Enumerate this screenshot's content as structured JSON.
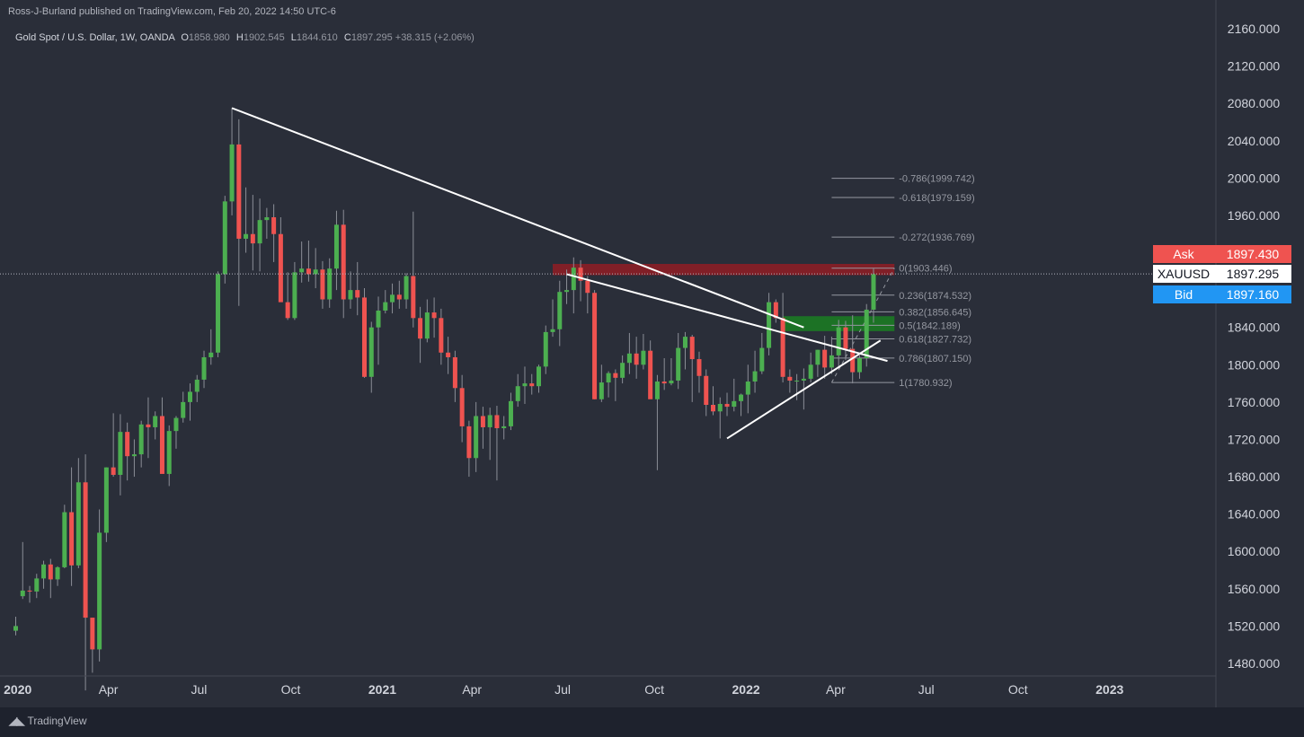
{
  "header": {
    "publisher": "Ross-J-Burland published on TradingView.com, Feb 20, 2022 14:50 UTC-6",
    "symbol": "Gold Spot / U.S. Dollar, 1W, OANDA",
    "open_label": "O",
    "open": "1858.980",
    "high_label": "H",
    "high": "1902.545",
    "low_label": "L",
    "low": "1844.610",
    "close_label": "C",
    "close": "1897.295",
    "change": "+38.315 (+2.06%)"
  },
  "price_badges": {
    "ask_label": "Ask",
    "ask": "1897.430",
    "last_label": "XAUUSD",
    "last": "1897.295",
    "bid_label": "Bid",
    "bid": "1897.160"
  },
  "footer": {
    "logo_text": "TradingView",
    "logo_icon": "tradingview-logo-icon"
  },
  "colors": {
    "background": "#2a2e39",
    "up": "#26a69a",
    "up_body": "#4caf50",
    "down": "#ef5350",
    "ask": "#ef5350",
    "bid": "#2196f3",
    "resistance_zone": "#8b1e26",
    "support_zone": "#1b7a24",
    "trendline": "#ffffff",
    "fib": "#9598a1"
  },
  "chart_data": {
    "type": "candlestick",
    "title": "Gold Spot / U.S. Dollar, 1W, OANDA",
    "xlabel": "",
    "ylabel": "",
    "ylim": [
      1460,
      2180
    ],
    "y_ticks": [
      "2160.000",
      "2120.000",
      "2080.000",
      "2040.000",
      "2000.000",
      "1960.000",
      "1920.000",
      "1880.000",
      "1840.000",
      "1800.000",
      "1760.000",
      "1720.000",
      "1680.000",
      "1640.000",
      "1600.000",
      "1560.000",
      "1520.000",
      "1480.000"
    ],
    "x_ticks": [
      {
        "label": "2020",
        "date": "2020-01-01",
        "bold": true
      },
      {
        "label": "Apr",
        "date": "2020-04-01"
      },
      {
        "label": "Jul",
        "date": "2020-07-01"
      },
      {
        "label": "Oct",
        "date": "2020-10-01"
      },
      {
        "label": "2021",
        "date": "2021-01-01",
        "bold": true
      },
      {
        "label": "Apr",
        "date": "2021-04-01"
      },
      {
        "label": "Jul",
        "date": "2021-07-01"
      },
      {
        "label": "Oct",
        "date": "2021-10-01"
      },
      {
        "label": "2022",
        "date": "2022-01-01",
        "bold": true
      },
      {
        "label": "Apr",
        "date": "2022-04-01"
      },
      {
        "label": "Jul",
        "date": "2022-07-01"
      },
      {
        "label": "Oct",
        "date": "2022-10-01"
      },
      {
        "label": "2023",
        "date": "2023-01-01",
        "bold": true
      }
    ],
    "ohlc_weekly_2019_12_30_to_2022_02_14": [
      [
        1515,
        1530,
        1510,
        1520
      ],
      [
        1552,
        1610,
        1549,
        1558
      ],
      [
        1558,
        1563,
        1545,
        1557
      ],
      [
        1557,
        1576,
        1550,
        1571
      ],
      [
        1571,
        1590,
        1560,
        1586
      ],
      [
        1586,
        1592,
        1550,
        1570
      ],
      [
        1570,
        1584,
        1563,
        1583
      ],
      [
        1583,
        1650,
        1582,
        1642
      ],
      [
        1642,
        1690,
        1563,
        1585
      ],
      [
        1585,
        1700,
        1582,
        1674
      ],
      [
        1674,
        1704,
        1451,
        1529
      ],
      [
        1529,
        1515,
        1470,
        1495
      ],
      [
        1495,
        1645,
        1482,
        1620
      ],
      [
        1620,
        1690,
        1610,
        1690
      ],
      [
        1690,
        1748,
        1680,
        1682
      ],
      [
        1682,
        1747,
        1660,
        1728
      ],
      [
        1728,
        1738,
        1676,
        1702
      ],
      [
        1702,
        1720,
        1680,
        1704
      ],
      [
        1704,
        1740,
        1690,
        1736
      ],
      [
        1736,
        1765,
        1700,
        1733
      ],
      [
        1733,
        1750,
        1720,
        1745
      ],
      [
        1745,
        1765,
        1690,
        1683
      ],
      [
        1683,
        1735,
        1670,
        1729
      ],
      [
        1729,
        1745,
        1710,
        1743
      ],
      [
        1743,
        1771,
        1738,
        1760
      ],
      [
        1760,
        1780,
        1740,
        1771
      ],
      [
        1771,
        1789,
        1760,
        1784
      ],
      [
        1784,
        1815,
        1775,
        1808
      ],
      [
        1808,
        1838,
        1800,
        1813
      ],
      [
        1813,
        1900,
        1808,
        1897
      ],
      [
        1897,
        1981,
        1887,
        1975
      ],
      [
        1975,
        2075,
        1960,
        2036
      ],
      [
        2036,
        2063,
        1863,
        1935
      ],
      [
        1935,
        1990,
        1920,
        1940
      ],
      [
        1940,
        1982,
        1901,
        1930
      ],
      [
        1930,
        1978,
        1900,
        1955
      ],
      [
        1955,
        1968,
        1935,
        1958
      ],
      [
        1958,
        1972,
        1910,
        1940
      ],
      [
        1940,
        1958,
        1882,
        1867
      ],
      [
        1867,
        1899,
        1848,
        1850
      ],
      [
        1850,
        1910,
        1848,
        1899
      ],
      [
        1899,
        1932,
        1888,
        1903
      ],
      [
        1903,
        1933,
        1889,
        1897
      ],
      [
        1897,
        1925,
        1882,
        1902
      ],
      [
        1902,
        1911,
        1860,
        1870
      ],
      [
        1870,
        1914,
        1861,
        1903
      ],
      [
        1903,
        1965,
        1880,
        1950
      ],
      [
        1950,
        1966,
        1850,
        1870
      ],
      [
        1870,
        1900,
        1860,
        1880
      ],
      [
        1880,
        1910,
        1853,
        1872
      ],
      [
        1872,
        1882,
        1786,
        1787
      ],
      [
        1787,
        1846,
        1770,
        1840
      ],
      [
        1840,
        1873,
        1800,
        1858
      ],
      [
        1858,
        1880,
        1855,
        1867
      ],
      [
        1867,
        1887,
        1855,
        1875
      ],
      [
        1875,
        1890,
        1860,
        1870
      ],
      [
        1870,
        1898,
        1860,
        1895
      ],
      [
        1895,
        1964,
        1840,
        1850
      ],
      [
        1850,
        1862,
        1802,
        1828
      ],
      [
        1828,
        1870,
        1824,
        1856
      ],
      [
        1856,
        1872,
        1829,
        1850
      ],
      [
        1850,
        1860,
        1800,
        1813
      ],
      [
        1813,
        1830,
        1790,
        1808
      ],
      [
        1808,
        1815,
        1760,
        1775
      ],
      [
        1775,
        1789,
        1717,
        1734
      ],
      [
        1734,
        1740,
        1680,
        1700
      ],
      [
        1700,
        1760,
        1685,
        1745
      ],
      [
        1745,
        1755,
        1710,
        1733
      ],
      [
        1733,
        1754,
        1698,
        1746
      ],
      [
        1746,
        1756,
        1676,
        1732
      ],
      [
        1732,
        1745,
        1720,
        1734
      ],
      [
        1734,
        1770,
        1730,
        1761
      ],
      [
        1761,
        1790,
        1755,
        1777
      ],
      [
        1777,
        1798,
        1758,
        1780
      ],
      [
        1780,
        1790,
        1768,
        1777
      ],
      [
        1777,
        1800,
        1770,
        1798
      ],
      [
        1798,
        1842,
        1790,
        1835
      ],
      [
        1835,
        1870,
        1830,
        1838
      ],
      [
        1838,
        1890,
        1820,
        1878
      ],
      [
        1878,
        1902,
        1865,
        1880
      ],
      [
        1880,
        1915,
        1855,
        1904
      ],
      [
        1904,
        1912,
        1868,
        1890
      ],
      [
        1890,
        1895,
        1855,
        1877
      ],
      [
        1877,
        1880,
        1763,
        1763
      ],
      [
        1763,
        1800,
        1760,
        1781
      ],
      [
        1781,
        1793,
        1765,
        1791
      ],
      [
        1791,
        1795,
        1761,
        1786
      ],
      [
        1786,
        1810,
        1780,
        1802
      ],
      [
        1802,
        1834,
        1790,
        1812
      ],
      [
        1812,
        1830,
        1785,
        1800
      ],
      [
        1800,
        1833,
        1795,
        1815
      ],
      [
        1815,
        1826,
        1790,
        1763
      ],
      [
        1763,
        1789,
        1687,
        1782
      ],
      [
        1782,
        1807,
        1773,
        1780
      ],
      [
        1780,
        1807,
        1778,
        1783
      ],
      [
        1783,
        1834,
        1774,
        1818
      ],
      [
        1818,
        1835,
        1795,
        1830
      ],
      [
        1830,
        1832,
        1760,
        1806
      ],
      [
        1806,
        1814,
        1770,
        1788
      ],
      [
        1788,
        1795,
        1745,
        1757
      ],
      [
        1757,
        1777,
        1746,
        1750
      ],
      [
        1750,
        1765,
        1721,
        1758
      ],
      [
        1758,
        1770,
        1745,
        1755
      ],
      [
        1755,
        1785,
        1750,
        1761
      ],
      [
        1761,
        1769,
        1745,
        1768
      ],
      [
        1768,
        1800,
        1748,
        1782
      ],
      [
        1782,
        1815,
        1770,
        1793
      ],
      [
        1793,
        1834,
        1790,
        1818
      ],
      [
        1818,
        1877,
        1810,
        1867
      ],
      [
        1867,
        1870,
        1845,
        1850
      ],
      [
        1850,
        1877,
        1781,
        1787
      ],
      [
        1787,
        1795,
        1770,
        1783
      ],
      [
        1783,
        1790,
        1762,
        1783
      ],
      [
        1783,
        1796,
        1752,
        1785
      ],
      [
        1785,
        1813,
        1781,
        1800
      ],
      [
        1800,
        1816,
        1787,
        1816
      ],
      [
        1816,
        1831,
        1785,
        1797
      ],
      [
        1797,
        1830,
        1790,
        1810
      ],
      [
        1810,
        1848,
        1796,
        1840
      ],
      [
        1840,
        1847,
        1805,
        1817
      ],
      [
        1817,
        1853,
        1780,
        1792
      ],
      [
        1792,
        1810,
        1785,
        1807
      ],
      [
        1807,
        1865,
        1798,
        1859
      ],
      [
        1859,
        1903,
        1845,
        1897
      ]
    ],
    "trendlines": [
      {
        "from": {
          "week": 31,
          "price": 2075
        },
        "to": {
          "week": 113,
          "price": 1840
        }
      },
      {
        "from": {
          "week": 79,
          "price": 1897
        },
        "to": {
          "week": 125,
          "price": 1804
        }
      },
      {
        "from": {
          "week": 102,
          "price": 1721
        },
        "to": {
          "week": 124,
          "price": 1826
        }
      }
    ],
    "zones": [
      {
        "name": "resistance",
        "from_week": 77,
        "to_week": 126,
        "top": 1908,
        "bottom": 1896
      },
      {
        "name": "support",
        "from_week": 110,
        "to_week": 126,
        "top": 1852,
        "bottom": 1836
      }
    ],
    "fibonacci": [
      {
        "ratio": "-0.786",
        "price": 1999.742,
        "label": "-0.786(1999.742)"
      },
      {
        "ratio": "-0.618",
        "price": 1979.159,
        "label": "-0.618(1979.159)"
      },
      {
        "ratio": "-0.272",
        "price": 1936.769,
        "label": "-0.272(1936.769)"
      },
      {
        "ratio": "0",
        "price": 1903.446,
        "label": "0(1903.446)"
      },
      {
        "ratio": "0.236",
        "price": 1874.532,
        "label": "0.236(1874.532)"
      },
      {
        "ratio": "0.382",
        "price": 1856.645,
        "label": "0.382(1856.645)"
      },
      {
        "ratio": "0.5",
        "price": 1842.189,
        "label": "0.5(1842.189)"
      },
      {
        "ratio": "0.618",
        "price": 1827.732,
        "label": "0.618(1827.732)"
      },
      {
        "ratio": "0.786",
        "price": 1807.15,
        "label": "0.786(1807.150)"
      },
      {
        "ratio": "1",
        "price": 1780.932,
        "label": "1(1780.932)"
      }
    ],
    "fib_range": {
      "from_week": 117,
      "to_week": 126
    },
    "last_price": 1897.295,
    "grid": false
  }
}
